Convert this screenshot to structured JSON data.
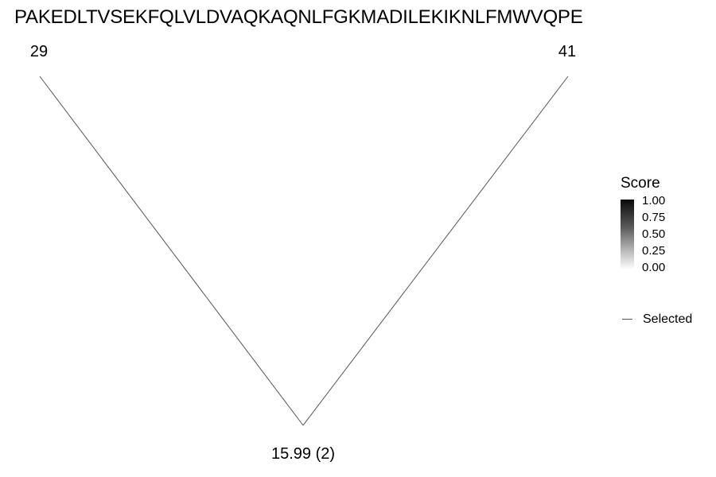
{
  "sequence": "PAKEDLTVSEKFQLVLDVAQKAQNLFGKMADILEKIKNLFMWVQPE",
  "nodes": {
    "left_label": "29",
    "right_label": "41",
    "bottom_label": "15.99 (2)"
  },
  "legend": {
    "title": "Score",
    "ticks": [
      "1.00",
      "0.75",
      "0.50",
      "0.25",
      "0.00"
    ],
    "selected_label": "Selected"
  },
  "colors": {
    "line": "#555555",
    "gradient_high": "#0a0a0a",
    "gradient_low": "#fbfbfb"
  }
}
